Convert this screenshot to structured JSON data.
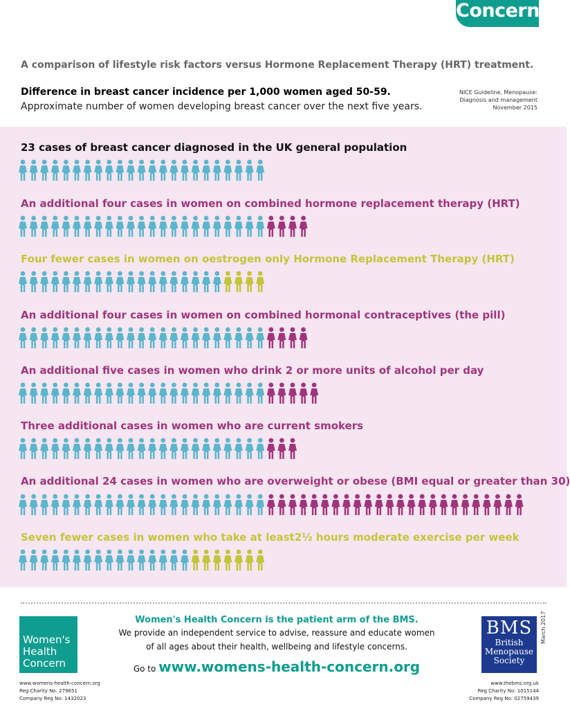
{
  "top_logo": "Concern",
  "heading": "A comparison of lifestyle risk factors versus Hormone Replacement Therapy (HRT) treatment.",
  "subhead_bold": "Difference in breast cancer incidence per 1,000 women aged 50-59.",
  "subhead": "Approximate number of women developing breast cancer over the next five years.",
  "source": {
    "line1": "NICE Guideline, Menopause:",
    "line2": "Diagnosis and management",
    "line3": "November 2015"
  },
  "colors": {
    "base": "#5bb5cc",
    "increase": "#a0357c",
    "decrease": "#c4c43c",
    "panel": "#f6e6f1",
    "brand": "#0f9d8f"
  },
  "chart_data": {
    "type": "pictogram",
    "unit": "women",
    "rows": [
      {
        "label": "23 cases of breast cancer diagnosed in the UK general population",
        "base": 23,
        "change": 0,
        "kind": "base"
      },
      {
        "label": "An additional four cases in women on combined hormone replacement therapy (HRT)",
        "base": 23,
        "change": 4,
        "kind": "increase"
      },
      {
        "label": "Four fewer  cases in women on oestrogen only Hormone Replacement Therapy (HRT)",
        "base": 19,
        "change": -4,
        "kind": "decrease"
      },
      {
        "label": "An additional four cases in women on combined hormonal contraceptives (the pill)",
        "base": 23,
        "change": 4,
        "kind": "increase"
      },
      {
        "label": "An additional five cases in women who drink 2 or more units of alcohol per day",
        "base": 23,
        "change": 5,
        "kind": "increase"
      },
      {
        "label": "Three additional cases in women who are current smokers",
        "base": 23,
        "change": 3,
        "kind": "increase"
      },
      {
        "label": "An additional 24 cases in women who are overweight or obese (BMI equal or greater than 30)",
        "base": 23,
        "change": 24,
        "kind": "increase"
      },
      {
        "label": "Seven fewer cases in women who take at least2½ hours moderate exercise per week",
        "base": 16,
        "change": -7,
        "kind": "decrease"
      }
    ]
  },
  "footer": {
    "whc_logo": [
      "Women's",
      "Health",
      "Concern"
    ],
    "line1": "Women's Health Concern is the patient arm of the BMS.",
    "line2": "We provide an independent service to advise, reassure and educate women",
    "line3": "of all ages about their health, wellbeing and lifestyle concerns.",
    "go_to": "Go to",
    "url": "www.womens-health-concern.org",
    "bms_logo": {
      "big": "BMS",
      "l1": "British",
      "l2": "Menopause",
      "l3": "Society"
    },
    "date": "March 2017",
    "left_small": [
      "www.womens-health-concern.org",
      "Reg Charity No: 279651",
      "Company Reg No: 1432023"
    ],
    "right_small": [
      "www.thebms.org.uk",
      "Reg Charity No: 1015144",
      "Company Reg No: 02759439"
    ]
  }
}
